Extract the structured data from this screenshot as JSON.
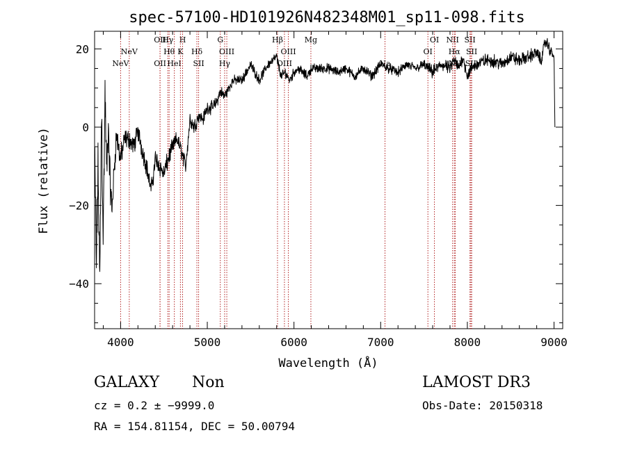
{
  "chart_data": {
    "type": "line",
    "title": "spec-57100-HD101926N482348M01_sp11-098.fits",
    "xlabel": "Wavelength (Å)",
    "ylabel": "Flux (relative)",
    "xlim": [
      3700,
      9100
    ],
    "ylim": [
      -51.5,
      24.5
    ],
    "xticks": [
      4000,
      5000,
      6000,
      7000,
      8000,
      9000
    ],
    "yticks": [
      -40,
      -20,
      0,
      20
    ],
    "grid": false,
    "series": [
      {
        "x": [
          3700,
          3720,
          3740,
          3760,
          3780,
          3800,
          3820,
          3840,
          3860,
          3880,
          3900,
          3950,
          4000,
          4050,
          4100,
          4150,
          4200,
          4250,
          4300,
          4350,
          4380,
          4400,
          4450,
          4500,
          4550,
          4600,
          4650,
          4700,
          4750,
          4800,
          4850,
          4900,
          4950,
          5000,
          5050,
          5100,
          5150,
          5200,
          5250,
          5300,
          5400,
          5500,
          5600,
          5700,
          5800,
          5850,
          5900,
          5950,
          6000,
          6050,
          6100,
          6150,
          6200,
          6300,
          6400,
          6500,
          6600,
          6700,
          6800,
          6900,
          7000,
          7100,
          7200,
          7300,
          7400,
          7500,
          7600,
          7700,
          7800,
          7850,
          7900,
          7950,
          8000,
          8050,
          8100,
          8200,
          8300,
          8400,
          8500,
          8600,
          8700,
          8800,
          8850,
          8900,
          8950,
          9000,
          9010
        ],
        "y": [
          -5,
          -35,
          -10,
          -40,
          5,
          -28,
          8,
          -12,
          0,
          -15,
          -21,
          -2,
          -8,
          -3,
          -3,
          -5,
          -1,
          -6,
          -10,
          -16,
          -12,
          -8,
          -10,
          -12,
          -8,
          -5,
          -3,
          -6,
          -10,
          2,
          0,
          3,
          2,
          5,
          5,
          6,
          9,
          8,
          10,
          12,
          12,
          16,
          12,
          16,
          18,
          13,
          14,
          12,
          14,
          15,
          14,
          13,
          15,
          15,
          15,
          14,
          15,
          13,
          15,
          13,
          16,
          15,
          14,
          16,
          15,
          16,
          14,
          16,
          15,
          17,
          15,
          18,
          13,
          15,
          16,
          17,
          17,
          16,
          18,
          17,
          18,
          19,
          17,
          22,
          20,
          18,
          0
        ],
        "noise": [
          6,
          12,
          9,
          10,
          10,
          10,
          9,
          7,
          6,
          6,
          5,
          4,
          4,
          3,
          3,
          3,
          3,
          3,
          3,
          2.5,
          3,
          3,
          3,
          3,
          3,
          2.5,
          2.5,
          2.5,
          2.5,
          2.5,
          2.5,
          2,
          2,
          2,
          2,
          2,
          2,
          2,
          1.5,
          1.5,
          1.5,
          1.5,
          1.5,
          1.5,
          1.5,
          1.5,
          1.5,
          1.5,
          1.5,
          1.5,
          1.5,
          1.5,
          1.5,
          1.5,
          1.5,
          1.5,
          1.5,
          1.5,
          1.5,
          1.5,
          1.5,
          1.5,
          1.5,
          1.5,
          1.5,
          1.5,
          2,
          2,
          2,
          2,
          2,
          2,
          2,
          2,
          2,
          2,
          2,
          2,
          2,
          2,
          2,
          2,
          2,
          2,
          2,
          1,
          0
        ]
      }
    ],
    "lines": [
      {
        "label": "NeV",
        "w": 4000,
        "row": 2
      },
      {
        "label": "NeV",
        "w": 4100,
        "row": 1
      },
      {
        "label": "OII",
        "w": 4455,
        "row": 0
      },
      {
        "label": "OII",
        "w": 4455,
        "row": 2
      },
      {
        "label": "Hγ",
        "w": 4545,
        "row": 0
      },
      {
        "label": "Hθ",
        "w": 4560,
        "row": 1
      },
      {
        "label": "HeI",
        "w": 4620,
        "row": 2
      },
      {
        "label": "H",
        "w": 4715,
        "row": 0
      },
      {
        "label": "K",
        "w": 4690,
        "row": 1
      },
      {
        "label": "Hδ",
        "w": 4880,
        "row": 1
      },
      {
        "label": "SII",
        "w": 4900,
        "row": 2
      },
      {
        "label": "G",
        "w": 5150,
        "row": 0
      },
      {
        "label": "OIII",
        "w": 5225,
        "row": 1
      },
      {
        "label": "Hγ",
        "w": 5200,
        "row": 2
      },
      {
        "label": "Hβ",
        "w": 5810,
        "row": 0
      },
      {
        "label": "OIII",
        "w": 5935,
        "row": 1
      },
      {
        "label": "OIII",
        "w": 5890,
        "row": 2
      },
      {
        "label": "Mg",
        "w": 6195,
        "row": 0
      },
      {
        "label": "Na",
        "w": 7050,
        "row": 2
      },
      {
        "label": "OI",
        "w": 7545,
        "row": 1
      },
      {
        "label": "OI",
        "w": 7620,
        "row": 0
      },
      {
        "label": "NII",
        "w": 7830,
        "row": 0
      },
      {
        "label": "Hα",
        "w": 7850,
        "row": 1
      },
      {
        "label": "NII",
        "w": 7860,
        "row": 2
      },
      {
        "label": "SII",
        "w": 8030,
        "row": 0
      },
      {
        "label": "SII",
        "w": 8050,
        "row": 1
      },
      {
        "label": "SII",
        "w": 8040,
        "row": 2
      }
    ]
  },
  "info": {
    "class_label": "GALAXY",
    "subclass_label": "Non",
    "survey_label": "LAMOST DR3",
    "cz_text": "cz = 0.2 ± −9999.0",
    "obs_date_text": "Obs-Date: 20150318",
    "radec_text": "RA = 154.81154, DEC =  50.00794"
  }
}
